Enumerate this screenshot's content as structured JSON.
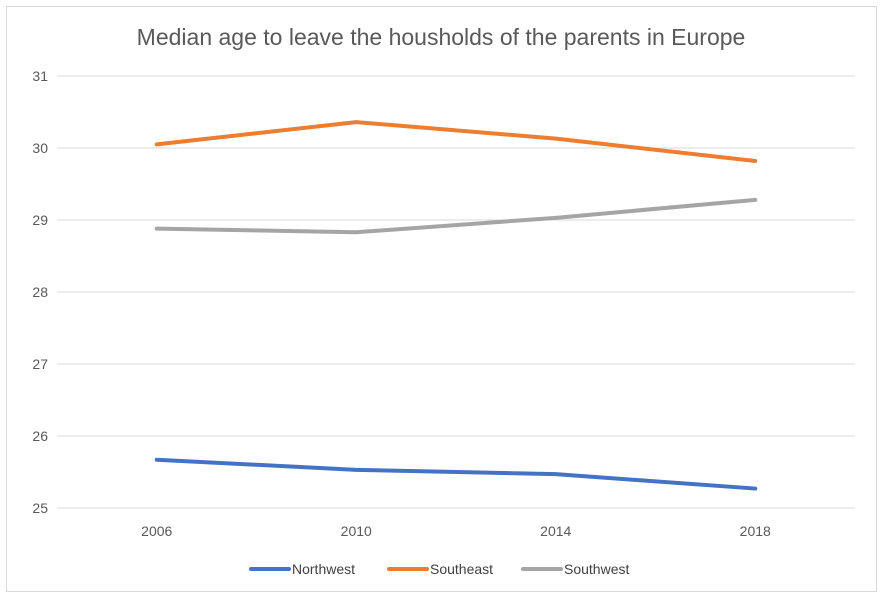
{
  "chart_data": {
    "type": "line",
    "title": "Median age to leave the housholds of the parents in Europe",
    "x": [
      "2006",
      "2010",
      "2014",
      "2018"
    ],
    "ylim": [
      25,
      31
    ],
    "yticks": [
      25,
      26,
      27,
      28,
      29,
      30,
      31
    ],
    "grid": true,
    "legend_position": "bottom",
    "series": [
      {
        "name": "Northwest",
        "color": "#4472c4",
        "values": [
          25.67,
          25.53,
          25.47,
          25.27
        ]
      },
      {
        "name": "Southeast",
        "color": "#ed7d31",
        "values": [
          30.05,
          30.36,
          30.13,
          29.82
        ]
      },
      {
        "name": "Southwest",
        "color": "#a5a5a5",
        "values": [
          28.88,
          28.83,
          29.03,
          29.28
        ]
      }
    ]
  }
}
